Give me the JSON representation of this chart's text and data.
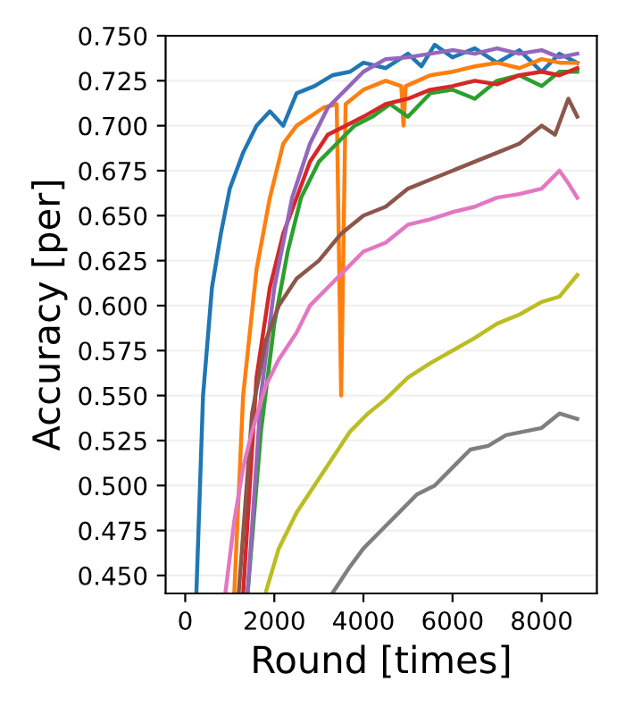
{
  "chart_data": {
    "type": "line",
    "xlabel": "Round [times]",
    "ylabel": "Accuracy [per]",
    "xlim": [
      -440,
      9240
    ],
    "ylim": [
      0.44,
      0.75
    ],
    "xticks": [
      0,
      2000,
      4000,
      6000,
      8000
    ],
    "yticks": [
      {
        "value": 0.45,
        "label": "0.450"
      },
      0.475,
      {
        "value": 0.5,
        "label": "0.500"
      },
      0.525,
      {
        "value": 0.55,
        "label": "0.550"
      },
      0.575,
      {
        "value": 0.6,
        "label": "0.600"
      },
      0.625,
      {
        "value": 0.65,
        "label": "0.650"
      },
      0.675,
      {
        "value": 0.7,
        "label": "0.700"
      },
      0.725,
      {
        "value": 0.75,
        "label": "0.750"
      }
    ],
    "grid": "y",
    "legend": false,
    "line_style": "solid",
    "series": [
      {
        "color": "#1f77b4",
        "x": [
          250,
          400,
          600,
          800,
          1000,
          1300,
          1600,
          1900,
          2200,
          2500,
          2900,
          3300,
          3700,
          4000,
          4500,
          5000,
          5300,
          5600,
          6000,
          6500,
          7000,
          7500,
          8000,
          8400,
          8800
        ],
        "values": [
          0.44,
          0.55,
          0.61,
          0.64,
          0.665,
          0.685,
          0.7,
          0.708,
          0.7,
          0.718,
          0.722,
          0.728,
          0.73,
          0.735,
          0.732,
          0.74,
          0.733,
          0.745,
          0.738,
          0.743,
          0.735,
          0.742,
          0.73,
          0.74,
          0.735
        ]
      },
      {
        "color": "#ff7f0e",
        "x": [
          1100,
          1300,
          1600,
          1900,
          2200,
          2500,
          2800,
          3100,
          3400,
          3500,
          3600,
          4000,
          4500,
          4850,
          4900,
          4950,
          5500,
          6000,
          6500,
          7000,
          7500,
          8000,
          8400,
          8800
        ],
        "values": [
          0.44,
          0.55,
          0.62,
          0.66,
          0.69,
          0.7,
          0.705,
          0.71,
          0.712,
          0.55,
          0.712,
          0.72,
          0.725,
          0.722,
          0.7,
          0.722,
          0.728,
          0.73,
          0.733,
          0.735,
          0.732,
          0.737,
          0.735,
          0.735
        ]
      },
      {
        "color": "#2ca02c",
        "x": [
          1400,
          1700,
          2000,
          2300,
          2600,
          3000,
          3400,
          3800,
          4200,
          4600,
          5000,
          5500,
          6000,
          6500,
          7000,
          7500,
          8000,
          8400,
          8800
        ],
        "values": [
          0.44,
          0.53,
          0.59,
          0.63,
          0.66,
          0.68,
          0.69,
          0.7,
          0.705,
          0.712,
          0.705,
          0.718,
          0.72,
          0.715,
          0.725,
          0.728,
          0.722,
          0.73,
          0.73
        ]
      },
      {
        "color": "#d62728",
        "x": [
          1300,
          1600,
          1900,
          2200,
          2500,
          2800,
          3200,
          3600,
          4000,
          4500,
          5000,
          5500,
          6000,
          6500,
          7000,
          7500,
          8000,
          8400,
          8800
        ],
        "values": [
          0.44,
          0.56,
          0.61,
          0.64,
          0.66,
          0.68,
          0.695,
          0.7,
          0.705,
          0.712,
          0.715,
          0.72,
          0.722,
          0.725,
          0.723,
          0.728,
          0.73,
          0.728,
          0.732
        ]
      },
      {
        "color": "#9467bd",
        "x": [
          1400,
          1700,
          2000,
          2400,
          2800,
          3200,
          3600,
          4000,
          4500,
          5000,
          5500,
          6000,
          6500,
          7000,
          7500,
          8000,
          8400,
          8800
        ],
        "values": [
          0.44,
          0.55,
          0.61,
          0.66,
          0.69,
          0.71,
          0.72,
          0.73,
          0.737,
          0.738,
          0.74,
          0.742,
          0.74,
          0.743,
          0.74,
          0.742,
          0.738,
          0.74
        ]
      },
      {
        "color": "#8c564b",
        "x": [
          1200,
          1500,
          1800,
          2100,
          2500,
          3000,
          3500,
          4000,
          4500,
          5000,
          5500,
          6000,
          6500,
          7000,
          7500,
          8000,
          8300,
          8600,
          8800
        ],
        "values": [
          0.44,
          0.54,
          0.58,
          0.6,
          0.615,
          0.625,
          0.64,
          0.65,
          0.655,
          0.665,
          0.67,
          0.675,
          0.68,
          0.685,
          0.69,
          0.7,
          0.695,
          0.715,
          0.705
        ]
      },
      {
        "color": "#e377c2",
        "x": [
          900,
          1100,
          1300,
          1500,
          1800,
          2100,
          2500,
          2800,
          3200,
          3600,
          4000,
          4500,
          5000,
          5500,
          6000,
          6500,
          7000,
          7500,
          8000,
          8400,
          8600,
          8800
        ],
        "values": [
          0.44,
          0.48,
          0.51,
          0.53,
          0.555,
          0.57,
          0.585,
          0.6,
          0.61,
          0.62,
          0.63,
          0.635,
          0.645,
          0.648,
          0.652,
          0.655,
          0.66,
          0.662,
          0.665,
          0.675,
          0.668,
          0.66
        ]
      },
      {
        "color": "#7f7f7f",
        "x": [
          3300,
          3700,
          4000,
          4400,
          4800,
          5200,
          5600,
          6000,
          6400,
          6800,
          7200,
          7600,
          8000,
          8400,
          8800
        ],
        "values": [
          0.44,
          0.455,
          0.465,
          0.475,
          0.485,
          0.495,
          0.5,
          0.51,
          0.52,
          0.522,
          0.528,
          0.53,
          0.532,
          0.54,
          0.537
        ]
      },
      {
        "color": "#bcbd22",
        "x": [
          1800,
          2100,
          2500,
          2900,
          3300,
          3700,
          4100,
          4500,
          5000,
          5500,
          6000,
          6500,
          7000,
          7500,
          8000,
          8400,
          8800
        ],
        "values": [
          0.44,
          0.465,
          0.485,
          0.5,
          0.515,
          0.53,
          0.54,
          0.548,
          0.56,
          0.568,
          0.575,
          0.582,
          0.59,
          0.595,
          0.602,
          0.605,
          0.617
        ]
      }
    ]
  }
}
